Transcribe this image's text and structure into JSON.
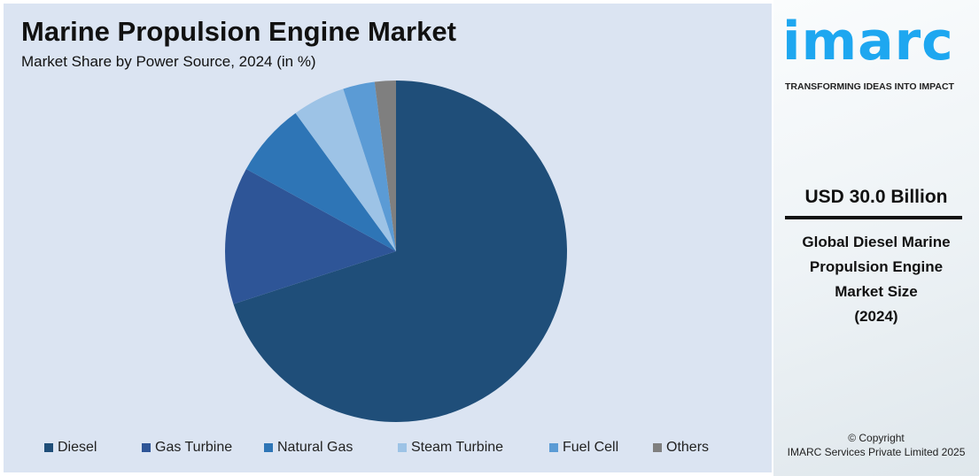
{
  "chart_data": {
    "type": "pie",
    "title": "Marine Propulsion Engine Market",
    "subtitle": "Market Share by Power Source, 2024 (in %)",
    "categories": [
      "Diesel",
      "Gas Turbine",
      "Natural Gas",
      "Steam Turbine",
      "Fuel Cell",
      "Others"
    ],
    "values": [
      70,
      13,
      7,
      5,
      3,
      2
    ],
    "colors": [
      "#1f4e79",
      "#2e5597",
      "#2e75b6",
      "#9dc3e6",
      "#5b9bd5",
      "#7f7f7f"
    ],
    "legend_position": "bottom"
  },
  "sidebar": {
    "logo": "imarc",
    "tagline": "TRANSFORMING IDEAS INTO IMPACT",
    "value": "USD 30.0 Billion",
    "description_lines": [
      "Global Diesel Marine",
      "Propulsion Engine",
      "Market Size",
      "(2024)"
    ],
    "copyright": "© Copyright",
    "company": "IMARC Services Private Limited 2025"
  }
}
